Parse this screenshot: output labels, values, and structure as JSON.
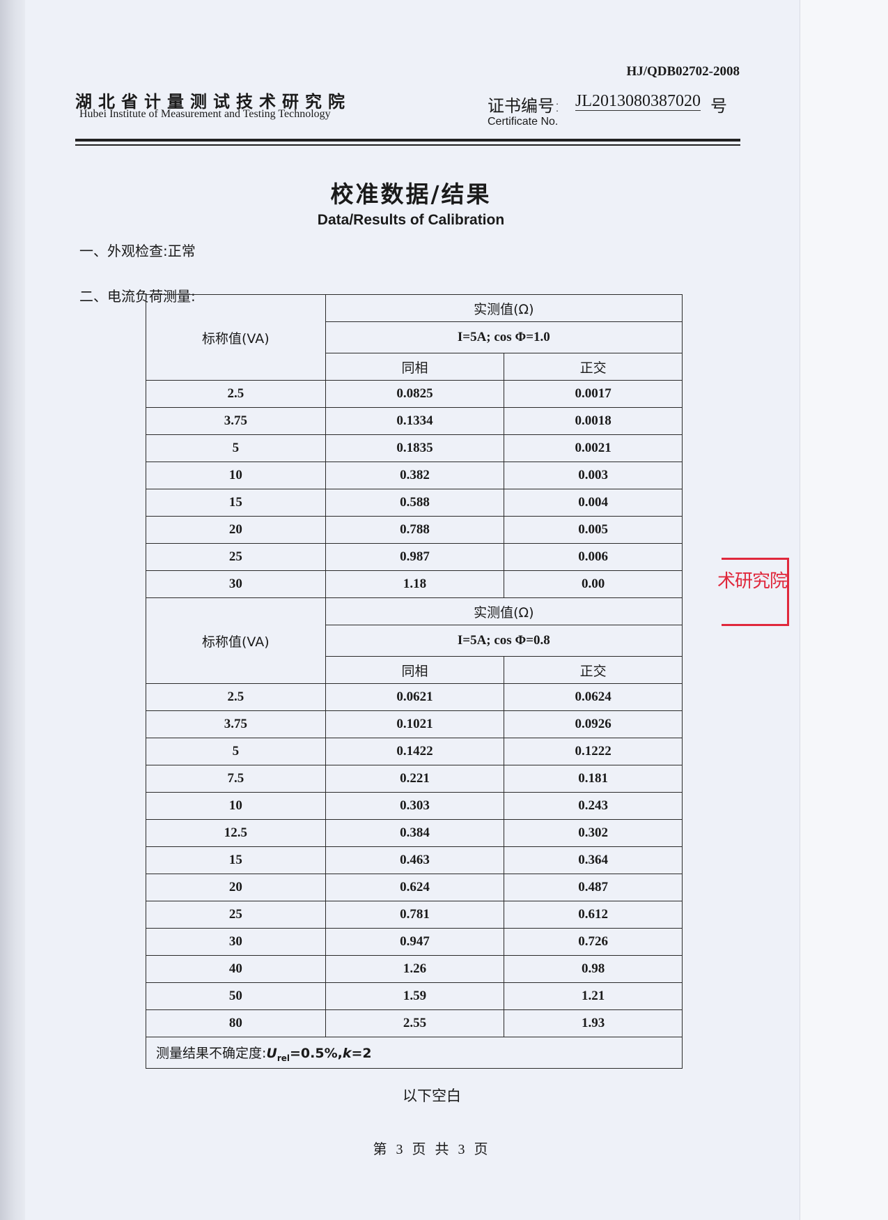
{
  "header": {
    "standard_code": "HJ/QDB02702-2008",
    "institute_cn": "湖北省计量测试技术研究院",
    "institute_en": "Hubei Institute of Measurement and Testing Technology",
    "certificate_label_cn": "证书编号:",
    "certificate_no": "JL2013080387020",
    "certificate_suffix": "号",
    "certificate_label_en": "Certificate No."
  },
  "title_cn": "校准数据/结果",
  "title_en": "Data/Results of Calibration",
  "section1": "一、外观检查:正常",
  "section2": "二、电流负荷测量:",
  "tables": [
    {
      "nominal_header": "标称值(VA)",
      "measured_header": "实测值(Ω)",
      "condition": "I=5A; cos Φ=1.0",
      "col_inphase": "同相",
      "col_quadrature": "正交",
      "rows": [
        [
          "2.5",
          "0.0825",
          "0.0017"
        ],
        [
          "3.75",
          "0.1334",
          "0.0018"
        ],
        [
          "5",
          "0.1835",
          "0.0021"
        ],
        [
          "10",
          "0.382",
          "0.003"
        ],
        [
          "15",
          "0.588",
          "0.004"
        ],
        [
          "20",
          "0.788",
          "0.005"
        ],
        [
          "25",
          "0.987",
          "0.006"
        ],
        [
          "30",
          "1.18",
          "0.00"
        ]
      ]
    },
    {
      "nominal_header": "标称值(VA)",
      "measured_header": "实测值(Ω)",
      "condition": "I=5A; cos Φ=0.8",
      "col_inphase": "同相",
      "col_quadrature": "正交",
      "rows": [
        [
          "2.5",
          "0.0621",
          "0.0624"
        ],
        [
          "3.75",
          "0.1021",
          "0.0926"
        ],
        [
          "5",
          "0.1422",
          "0.1222"
        ],
        [
          "7.5",
          "0.221",
          "0.181"
        ],
        [
          "10",
          "0.303",
          "0.243"
        ],
        [
          "12.5",
          "0.384",
          "0.302"
        ],
        [
          "15",
          "0.463",
          "0.364"
        ],
        [
          "20",
          "0.624",
          "0.487"
        ],
        [
          "25",
          "0.781",
          "0.612"
        ],
        [
          "30",
          "0.947",
          "0.726"
        ],
        [
          "40",
          "1.26",
          "0.98"
        ],
        [
          "50",
          "1.59",
          "1.21"
        ],
        [
          "80",
          "2.55",
          "1.93"
        ]
      ]
    }
  ],
  "uncertainty": {
    "label": "测量结果不确定度:",
    "symbol": "U",
    "subscript": "rel",
    "value": "=0.5%,",
    "k_symbol": "k",
    "k_value": "=2"
  },
  "end_note": "以下空白",
  "page_number": "第 3 页 共 3 页",
  "stamp": {
    "text": "术研究院",
    "color": "#e0283c"
  }
}
